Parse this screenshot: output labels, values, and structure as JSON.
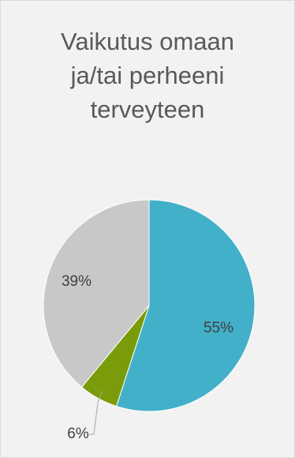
{
  "chart_data": {
    "type": "pie",
    "title_lines": [
      "Vaikutus omaan",
      "ja/tai perheeni",
      "terveyteen"
    ],
    "slices": [
      {
        "value": 55,
        "label": "55%",
        "color": "#43b0c9"
      },
      {
        "value": 6,
        "label": "6%",
        "color": "#7a9c0a"
      },
      {
        "value": 39,
        "label": "39%",
        "color": "#c8c8c8"
      }
    ],
    "start_angle_deg": 0,
    "direction": "clockwise",
    "leader_line_color": "#a6a6a6"
  }
}
